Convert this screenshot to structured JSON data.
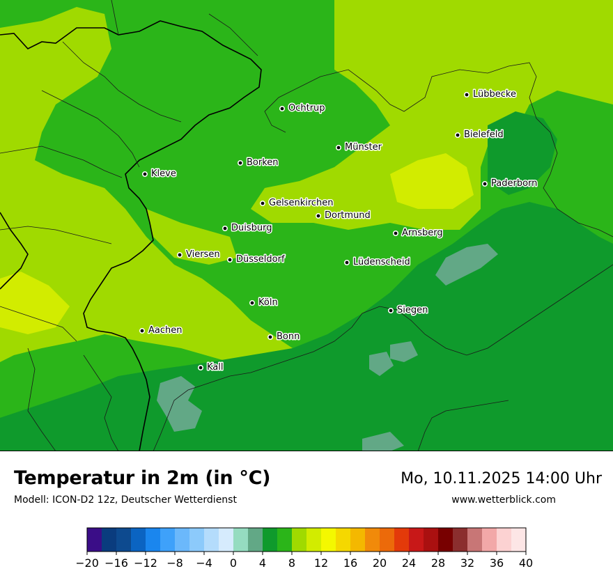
{
  "map": {
    "cities": [
      {
        "name": "Lübbecke"
      },
      {
        "name": "Ochtrup"
      },
      {
        "name": "Bielefeld"
      },
      {
        "name": "Münster"
      },
      {
        "name": "Borken"
      },
      {
        "name": "Kleve"
      },
      {
        "name": "Paderborn"
      },
      {
        "name": "Gelsenkirchen"
      },
      {
        "name": "Dortmund"
      },
      {
        "name": "Duisburg"
      },
      {
        "name": "Arnsberg"
      },
      {
        "name": "Viersen"
      },
      {
        "name": "Düsseldorf"
      },
      {
        "name": "Lüdenscheid"
      },
      {
        "name": "Köln"
      },
      {
        "name": "Siegen"
      },
      {
        "name": "Aachen"
      },
      {
        "name": "Bonn"
      },
      {
        "name": "Kall"
      }
    ]
  },
  "header": {
    "title": "Temperatur in 2m (in °C)",
    "model": "Modell: ICON-D2 12z, Deutscher Wetterdienst",
    "datetime": "Mo, 10.11.2025 14:00 Uhr",
    "site": "www.wetterblick.com"
  },
  "legend": {
    "min": -20,
    "max": 40,
    "step": 2,
    "tick_step": 4,
    "tick_labels": [
      "−20",
      "−16",
      "−12",
      "−8",
      "−4",
      "0",
      "4",
      "8",
      "12",
      "16",
      "20",
      "24",
      "28",
      "32",
      "36",
      "40"
    ],
    "colors": [
      "#3a0d87",
      "#0a3c7e",
      "#0d4a8f",
      "#0b64c2",
      "#1a86ee",
      "#3ea1fa",
      "#6bb8fb",
      "#8ccafb",
      "#b4dcfc",
      "#d6ebfd",
      "#95dcc0",
      "#62a886",
      "#0f9a2c",
      "#2bb519",
      "#a0da00",
      "#d2ec00",
      "#f4f800",
      "#f5d800",
      "#f4b800",
      "#f18a0a",
      "#ec6a0a",
      "#e33a0a",
      "#c81818",
      "#aa1010",
      "#780000",
      "#8b2e2e",
      "#c87676",
      "#f2a8a8",
      "#fcd2d2",
      "#fde6e6"
    ]
  },
  "palette": {
    "t14": "#2bb519",
    "t12": "#0f9a2c",
    "t16": "#a0da00",
    "t18": "#d2ec00",
    "t10": "#62a886"
  }
}
